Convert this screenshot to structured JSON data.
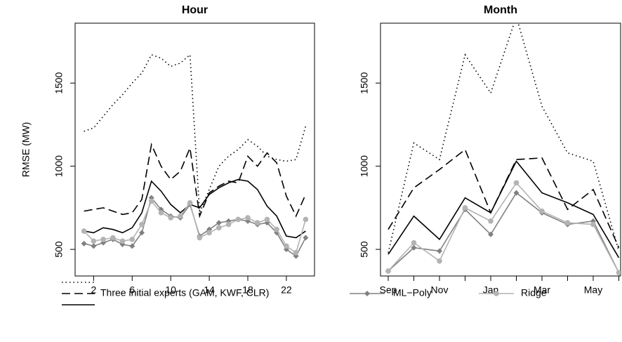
{
  "chart_data": [
    {
      "type": "line",
      "title": "Hour",
      "ylabel": "RMSE (MW)",
      "x": [
        1,
        2,
        3,
        4,
        5,
        6,
        7,
        8,
        9,
        10,
        11,
        12,
        13,
        14,
        15,
        16,
        17,
        18,
        19,
        20,
        21,
        22,
        23,
        24
      ],
      "xlim": [
        0.08,
        24.92
      ],
      "xticks": [
        2,
        6,
        10,
        14,
        18,
        22
      ],
      "ylim": [
        340,
        1860
      ],
      "yticks": [
        500,
        1000,
        1500
      ],
      "series": [
        {
          "color": "#000000",
          "dash": "dotted",
          "values": [
            1210,
            1230,
            1300,
            1370,
            1430,
            1500,
            1560,
            1670,
            1650,
            1600,
            1620,
            1670,
            720,
            860,
            1000,
            1060,
            1100,
            1160,
            1120,
            1060,
            1040,
            1030,
            1040,
            1240
          ]
        },
        {
          "color": "#000000",
          "dash": "dashed",
          "values": [
            730,
            740,
            750,
            730,
            710,
            720,
            800,
            1130,
            1000,
            920,
            970,
            1110,
            700,
            840,
            880,
            910,
            900,
            1060,
            1000,
            1080,
            1020,
            820,
            700,
            830
          ]
        },
        {
          "color": "#000000",
          "dash": "solid",
          "values": [
            610,
            600,
            630,
            620,
            600,
            630,
            720,
            910,
            850,
            770,
            720,
            770,
            750,
            830,
            870,
            900,
            920,
            910,
            860,
            760,
            700,
            580,
            570,
            610
          ]
        },
        {
          "name": "ML−Poly",
          "color": "#808080",
          "dash": "solid",
          "marker": "diamond",
          "values": [
            535,
            520,
            540,
            560,
            530,
            520,
            600,
            810,
            740,
            700,
            690,
            770,
            580,
            620,
            660,
            670,
            680,
            670,
            650,
            660,
            600,
            500,
            460,
            570
          ]
        },
        {
          "name": "Ridge",
          "color": "#b3b3b3",
          "dash": "solid",
          "marker": "circle",
          "values": [
            610,
            550,
            560,
            570,
            550,
            560,
            650,
            790,
            720,
            690,
            700,
            780,
            570,
            600,
            630,
            650,
            680,
            690,
            660,
            680,
            620,
            520,
            480,
            680
          ]
        }
      ]
    },
    {
      "type": "line",
      "title": "Month",
      "categories": [
        "Sep",
        null,
        "Nov",
        null,
        "Jan",
        null,
        "Mar",
        null,
        "May",
        null
      ],
      "ylim": [
        340,
        1860
      ],
      "yticks": [
        500,
        1000,
        1500
      ],
      "series": [
        {
          "color": "#000000",
          "dash": "dotted",
          "values": [
            480,
            1140,
            1040,
            1670,
            1440,
            1900,
            1360,
            1080,
            1030,
            490
          ]
        },
        {
          "color": "#000000",
          "dash": "dashed",
          "values": [
            620,
            870,
            980,
            1100,
            720,
            1040,
            1050,
            740,
            860,
            510
          ]
        },
        {
          "color": "#000000",
          "dash": "solid",
          "values": [
            470,
            700,
            560,
            810,
            720,
            1030,
            840,
            780,
            710,
            450
          ]
        },
        {
          "name": "ML−Poly",
          "color": "#808080",
          "dash": "solid",
          "marker": "diamond",
          "values": [
            370,
            510,
            490,
            740,
            590,
            840,
            720,
            650,
            670,
            360
          ]
        },
        {
          "name": "Ridge",
          "color": "#b3b3b3",
          "dash": "solid",
          "marker": "circle",
          "values": [
            370,
            540,
            430,
            750,
            670,
            900,
            730,
            660,
            650,
            360
          ]
        }
      ]
    }
  ],
  "legend": {
    "experts": "Three initial experts (GAM, KWF, CLR)"
  }
}
